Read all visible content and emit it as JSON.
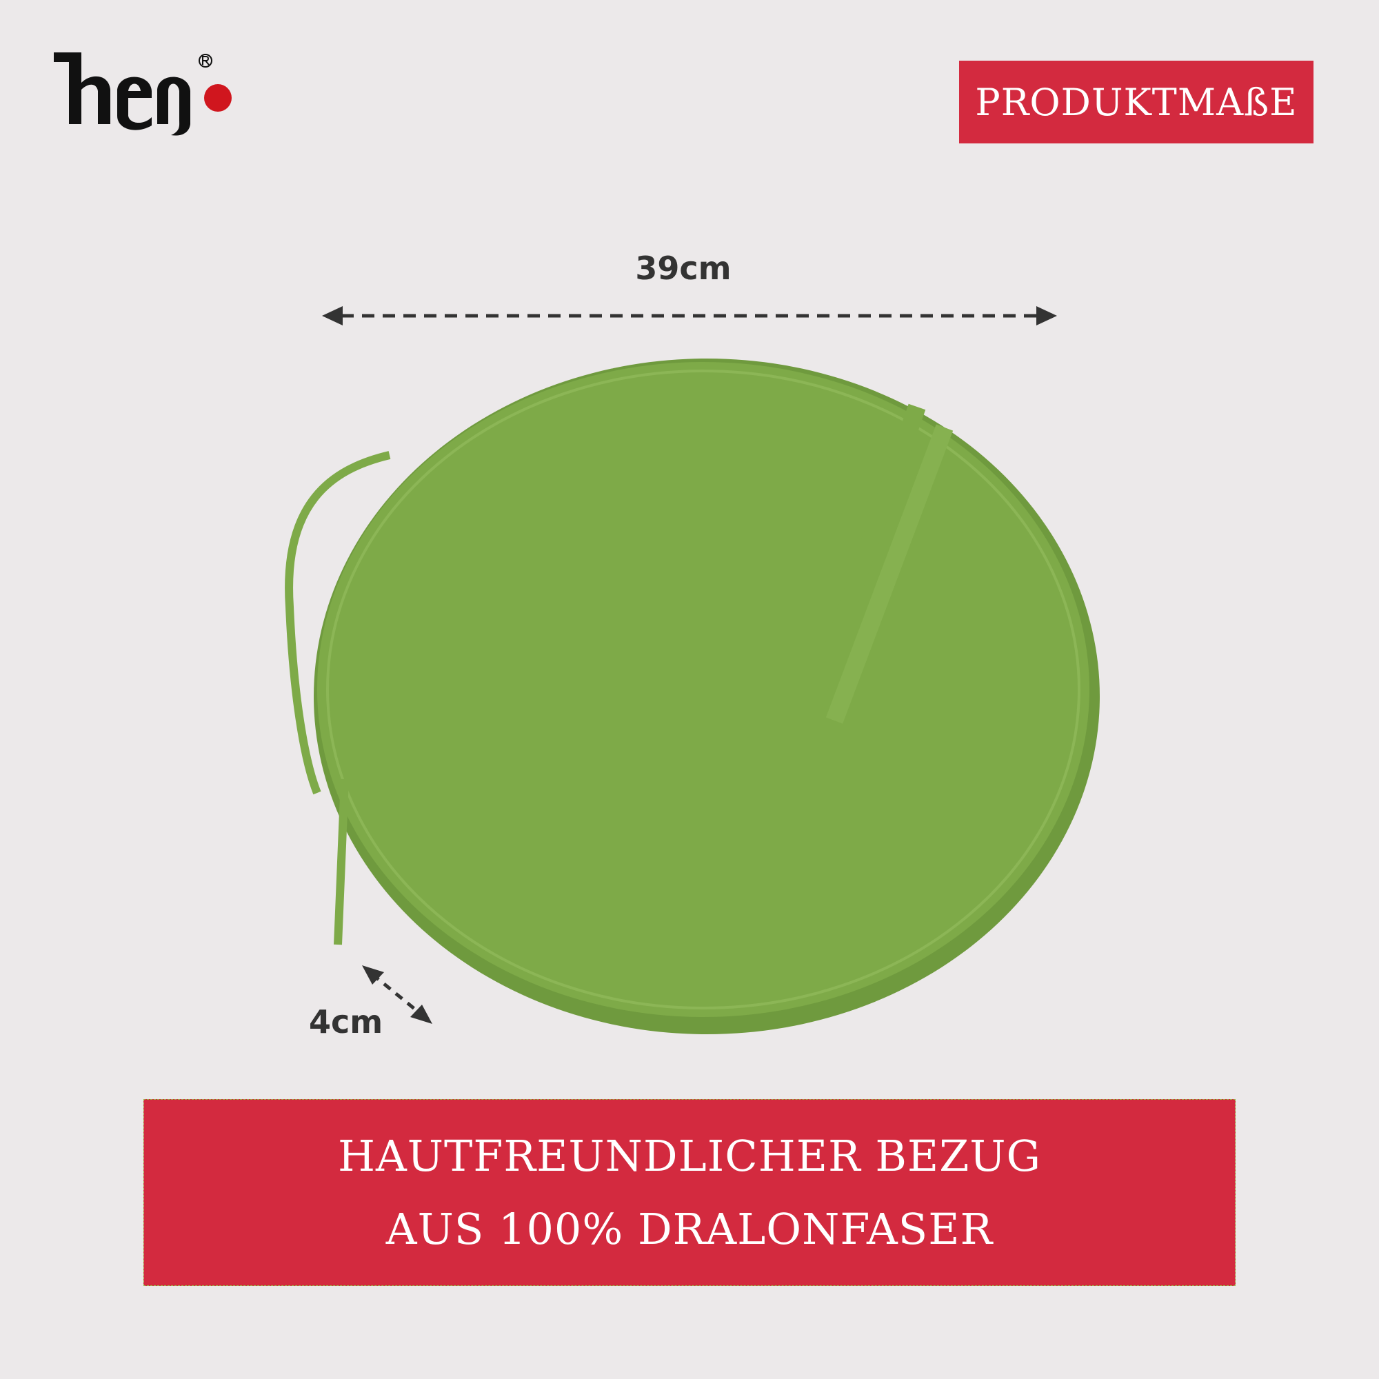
{
  "brand": {
    "logo_text": "heo",
    "registered": "®",
    "accent": "#d32a3f"
  },
  "badge": {
    "label": "PRODUKTMAßE"
  },
  "dimensions": {
    "width_label": "39cm",
    "height_label": "4cm"
  },
  "product": {
    "color": "#7eaa48"
  },
  "banner": {
    "line1": "HAUTFREUNDLICHER BEZUG",
    "line2": "AUS 100% DRALONFASER"
  }
}
